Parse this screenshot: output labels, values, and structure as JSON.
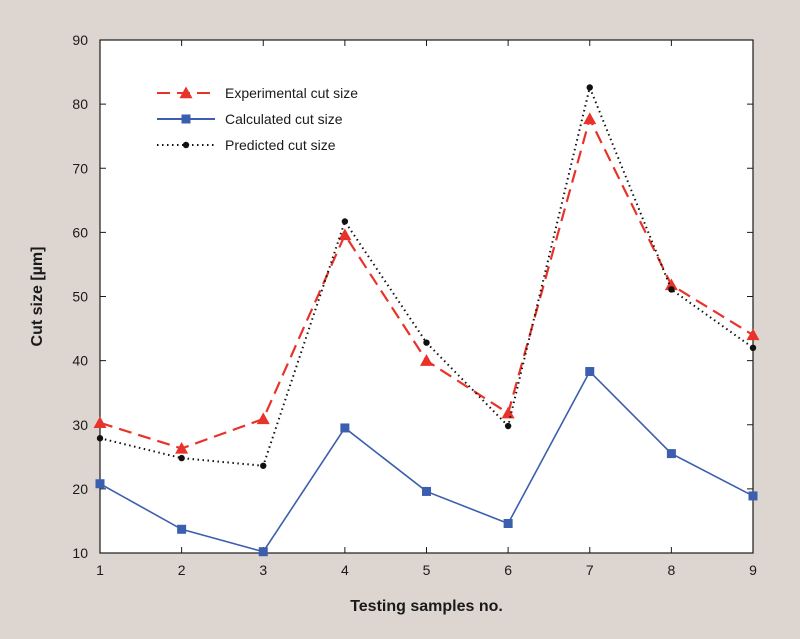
{
  "chart_data": {
    "type": "line",
    "title": "",
    "xlabel": "Testing samples no.",
    "ylabel": "Cut size [µm]",
    "x": [
      1,
      2,
      3,
      4,
      5,
      6,
      7,
      8,
      9
    ],
    "xlim": [
      1,
      9
    ],
    "ylim": [
      10,
      90
    ],
    "yticks": [
      10,
      20,
      30,
      40,
      50,
      60,
      70,
      80,
      90
    ],
    "grid": false,
    "legend_position": "top-left",
    "series": [
      {
        "name": "Experimental cut size",
        "key": "experimental",
        "color": "#e8332a",
        "line_style": "dashed",
        "marker": "triangle",
        "values": [
          30.3,
          26.3,
          30.9,
          59.6,
          40.0,
          31.8,
          77.7,
          51.8,
          44.0
        ]
      },
      {
        "name": "Calculated cut size",
        "key": "calculated",
        "color": "#3b5fae",
        "line_style": "solid",
        "marker": "square",
        "values": [
          20.8,
          13.7,
          10.2,
          29.5,
          19.6,
          14.6,
          38.3,
          25.5,
          18.9
        ]
      },
      {
        "name": "Predicted cut size",
        "key": "predicted",
        "color": "#111111",
        "line_style": "dotted",
        "marker": "circle",
        "values": [
          27.9,
          24.8,
          23.6,
          61.7,
          42.8,
          29.8,
          82.6,
          51.1,
          42.0
        ]
      }
    ]
  }
}
